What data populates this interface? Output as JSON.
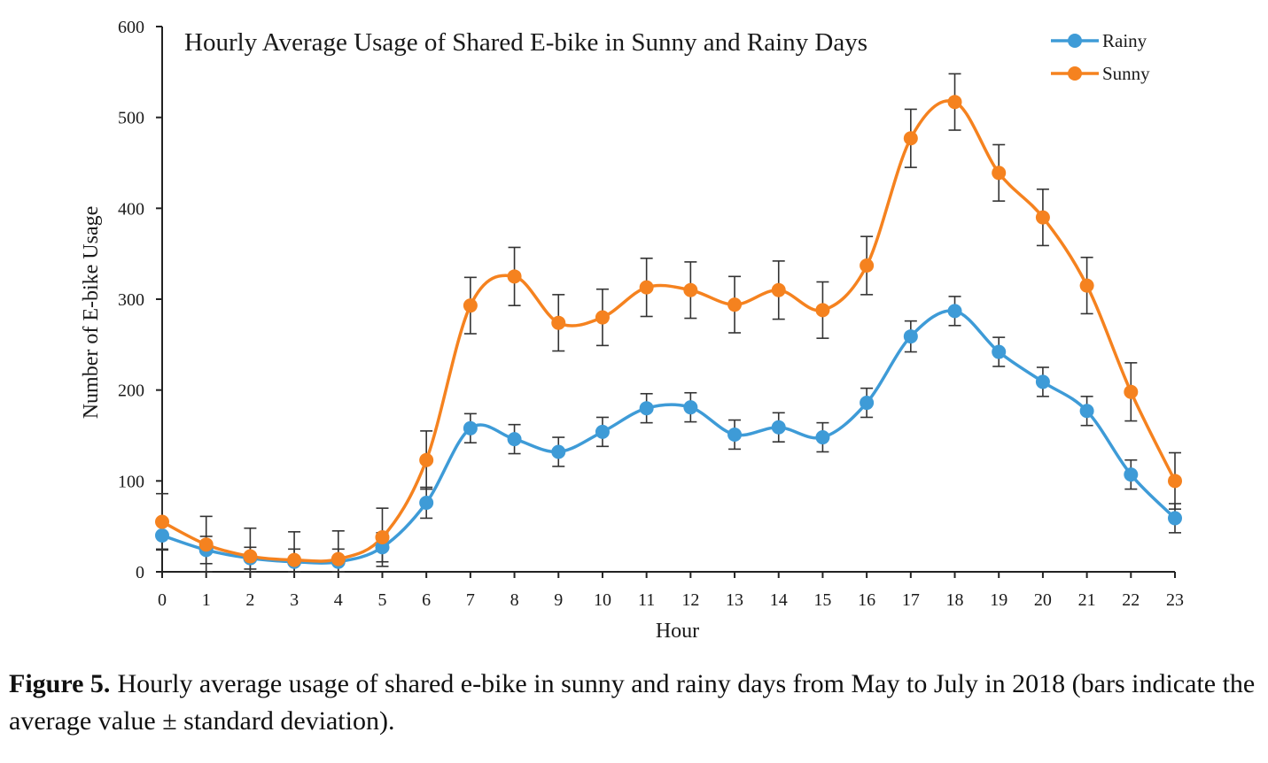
{
  "chart_data": {
    "type": "line",
    "title": "Hourly Average Usage of Shared E-bike in Sunny and Rainy Days",
    "xlabel": "Hour",
    "ylabel": "Number of E-bike Usage",
    "x": [
      0,
      1,
      2,
      3,
      4,
      5,
      6,
      7,
      8,
      9,
      10,
      11,
      12,
      13,
      14,
      15,
      16,
      17,
      18,
      19,
      20,
      21,
      22,
      23
    ],
    "ylim": [
      0,
      600
    ],
    "yticks": [
      0,
      100,
      200,
      300,
      400,
      500,
      600
    ],
    "grid": false,
    "legend_position": "top-right",
    "series": [
      {
        "name": "Rainy",
        "color": "#3E9BD7",
        "values": [
          40,
          24,
          15,
          11,
          11,
          27,
          76,
          158,
          146,
          132,
          154,
          180,
          181,
          151,
          159,
          148,
          186,
          259,
          287,
          242,
          209,
          177,
          107,
          59
        ],
        "error": [
          15,
          15,
          12,
          14,
          14,
          16,
          17,
          16,
          16,
          16,
          16,
          16,
          16,
          16,
          16,
          16,
          16,
          17,
          16,
          16,
          16,
          16,
          16,
          16
        ]
      },
      {
        "name": "Sunny",
        "color": "#F5821F",
        "values": [
          55,
          30,
          17,
          13,
          14,
          38,
          123,
          293,
          325,
          274,
          280,
          313,
          310,
          294,
          310,
          288,
          337,
          477,
          517,
          439,
          390,
          315,
          198,
          100
        ],
        "error": [
          31,
          31,
          31,
          31,
          31,
          32,
          32,
          31,
          32,
          31,
          31,
          32,
          31,
          31,
          32,
          31,
          32,
          32,
          31,
          31,
          31,
          31,
          32,
          31
        ]
      }
    ]
  },
  "caption": {
    "label": "Figure 5.",
    "text": "Hourly average usage of shared e-bike in sunny and rainy days from May to July in 2018 (bars indicate the average value ± standard deviation)."
  }
}
